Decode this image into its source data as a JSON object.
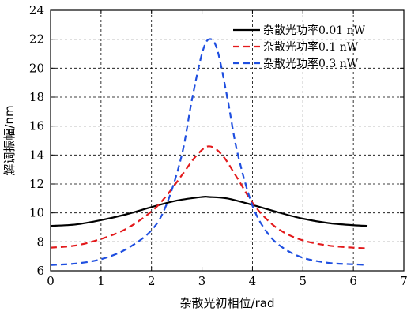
{
  "chart_data": {
    "type": "line",
    "xlabel": "杂散光初相位/rad",
    "ylabel": "解调振幅/nm",
    "xlim": [
      0,
      7
    ],
    "ylim": [
      6,
      24
    ],
    "xticks": [
      0,
      1,
      2,
      3,
      4,
      5,
      6,
      7
    ],
    "yticks": [
      6,
      8,
      10,
      12,
      14,
      16,
      18,
      20,
      22,
      24
    ],
    "grid": true,
    "legend_position": "top-right",
    "series": [
      {
        "name": "杂散光功率0.01 nW",
        "color": "#000000",
        "style": "solid",
        "x": [
          0,
          0.5,
          1.0,
          1.5,
          2.0,
          2.5,
          3.0,
          3.14,
          3.5,
          4.0,
          4.5,
          5.0,
          5.5,
          6.0,
          6.28
        ],
        "y": [
          9.1,
          9.2,
          9.5,
          9.9,
          10.4,
          10.85,
          11.1,
          11.1,
          11.0,
          10.55,
          10.05,
          9.6,
          9.3,
          9.15,
          9.1
        ]
      },
      {
        "name": "杂散光功率0.1 nW",
        "color": "#e31a1c",
        "style": "dashed",
        "x": [
          0,
          0.5,
          1.0,
          1.5,
          2.0,
          2.3,
          2.6,
          2.9,
          3.14,
          3.4,
          3.7,
          4.0,
          4.3,
          4.6,
          5.0,
          5.5,
          6.0,
          6.28
        ],
        "y": [
          7.6,
          7.75,
          8.2,
          8.9,
          10.1,
          11.2,
          12.6,
          14.0,
          14.6,
          14.0,
          12.4,
          10.7,
          9.5,
          8.7,
          8.1,
          7.75,
          7.6,
          7.55
        ]
      },
      {
        "name": "杂散光功率0.3 nW",
        "color": "#1f4fe0",
        "style": "dashed",
        "x": [
          0,
          0.5,
          1.0,
          1.5,
          2.0,
          2.3,
          2.6,
          2.8,
          3.0,
          3.14,
          3.3,
          3.5,
          3.7,
          4.0,
          4.3,
          4.6,
          5.0,
          5.5,
          6.0,
          6.28
        ],
        "y": [
          6.4,
          6.5,
          6.8,
          7.5,
          8.8,
          10.6,
          14.0,
          17.8,
          21.0,
          22.0,
          21.3,
          18.0,
          14.2,
          10.5,
          8.6,
          7.6,
          6.9,
          6.55,
          6.45,
          6.4
        ]
      }
    ]
  }
}
